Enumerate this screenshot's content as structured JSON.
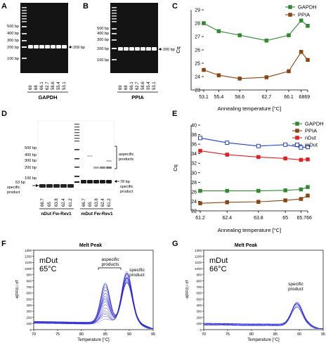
{
  "panel_letters": {
    "A": "A",
    "B": "B",
    "C": "C",
    "D": "D",
    "E": "E",
    "F": "F",
    "G": "G"
  },
  "gel_A": {
    "ladder": [
      "500 bp",
      "400 bp",
      "300 bp",
      "200 bp",
      "100 bp"
    ],
    "lanes": [
      "69",
      "68",
      "66.1",
      "62.7",
      "58.6",
      "55.4",
      "53.1"
    ],
    "band_label": "209 bp",
    "gene": "GAPDH"
  },
  "gel_B": {
    "ladder": [
      "500 bp",
      "400 bp",
      "300 bp",
      "200 bp",
      "100 bp"
    ],
    "lanes": [
      "69",
      "68",
      "66.1",
      "62.7",
      "58.6",
      "55.4",
      "53.1"
    ],
    "band_label": "200 bp",
    "gene": "PPIA"
  },
  "gel_D": {
    "ladder": [
      "500 bp",
      "400 bp",
      "300 bp",
      "200 bp",
      "100 bp"
    ],
    "lanes_left": [
      "66.7",
      "65",
      "63.8",
      "62.4",
      "61.2"
    ],
    "lanes_right": [
      "66.7",
      "65",
      "63.8",
      "62.4",
      "61.2"
    ],
    "left_label_bp": "53 bp",
    "left_label_1": "specific",
    "left_label_2": "product",
    "right_label_bp": "78 bp",
    "right_label_1": "specific",
    "right_label_2": "product",
    "aspecific_1": "aspecific",
    "aspecific_2": "products",
    "group_left": "nDut Fw-Rev1",
    "group_right": "mDut Fw-Rev1"
  },
  "chart_data": [
    {
      "id": "C",
      "type": "line",
      "xlabel": "Annealing temperature [°C]",
      "ylabel": "Cq",
      "x_ticks": [
        "53.1",
        "55.4",
        "58.6",
        "62.7",
        "66.1",
        "68",
        "69"
      ],
      "x_tick_display": [
        "53.1",
        "55.4",
        "58.6",
        "62.7",
        "66.1",
        "68",
        "69"
      ],
      "xlim": [
        53.1,
        69
      ],
      "ylim": [
        23,
        29
      ],
      "y_ticks": [
        23,
        24,
        25,
        26,
        27,
        28,
        29
      ],
      "grid": false,
      "legend": "top-right",
      "series": [
        {
          "name": "GAPDH",
          "color": "#2f8a2f",
          "marker": "square-filled",
          "x": [
            53.1,
            55.4,
            58.6,
            62.7,
            66.1,
            68,
            69
          ],
          "y": [
            28.0,
            27.4,
            27.1,
            26.7,
            27.1,
            28.2,
            27.8
          ]
        },
        {
          "name": "PPIA",
          "color": "#8b4513",
          "marker": "square-filled",
          "x": [
            53.1,
            55.4,
            58.6,
            62.7,
            66.1,
            68,
            69
          ],
          "y": [
            24.5,
            24.1,
            23.85,
            23.95,
            24.4,
            25.85,
            25.25
          ]
        }
      ]
    },
    {
      "id": "E",
      "type": "line",
      "xlabel": "Annealing temperature [°C]",
      "ylabel": "Cq",
      "x_ticks": [
        "61.2",
        "62.4",
        "63.8",
        "65",
        "65.7",
        "66"
      ],
      "x_tick_display": [
        "61.2",
        "62.4",
        "63.8",
        "65",
        "65.7",
        "66"
      ],
      "xlim": [
        61.2,
        66
      ],
      "ylim": [
        22,
        40
      ],
      "y_ticks": [
        22,
        24,
        26,
        28,
        30,
        32,
        34,
        36,
        38,
        40
      ],
      "grid": false,
      "legend": "top-right",
      "series": [
        {
          "name": "GAPDH",
          "color": "#2f8a2f",
          "marker": "square-filled",
          "x": [
            61.2,
            62.4,
            63.8,
            65,
            65.7,
            66
          ],
          "y": [
            26.2,
            26.2,
            26.2,
            26.3,
            26.5,
            27.0
          ]
        },
        {
          "name": "PPIA",
          "color": "#8b4513",
          "marker": "square-filled",
          "x": [
            61.2,
            62.4,
            63.8,
            65,
            65.7,
            66
          ],
          "y": [
            23.6,
            23.8,
            23.9,
            24.2,
            24.5,
            25.2
          ]
        },
        {
          "name": "nDut",
          "color": "#e02020",
          "marker": "square-filled",
          "x": [
            61.2,
            62.4,
            63.8,
            65,
            65.7,
            66
          ],
          "y": [
            34.6,
            33.8,
            33.3,
            33.0,
            32.7,
            32.8
          ]
        },
        {
          "name": "mDut",
          "color": "#1f3fd6",
          "marker": "square-open",
          "x": [
            61.2,
            62.4,
            63.8,
            65,
            65.7,
            66
          ],
          "y": [
            37.3,
            36.3,
            35.6,
            35.9,
            35.3,
            35.4
          ]
        }
      ]
    },
    {
      "id": "F",
      "type": "line",
      "title": "Melt Peak",
      "xlabel": "Temperature [°C]",
      "ylabel": "-d(RFU) / dT",
      "xlim": [
        70,
        95
      ],
      "x_ticks": [
        70,
        75,
        80,
        85,
        90,
        95
      ],
      "ylim": [
        0,
        1300
      ],
      "y_ticks": [
        0,
        100,
        200,
        300,
        400,
        500,
        600,
        700,
        800,
        900,
        1000,
        1100,
        1200,
        1300
      ],
      "annotation_condition": "mDut",
      "annotation_temp": "65°C",
      "annotation_aspecific_1": "aspecific",
      "annotation_aspecific_2": "products",
      "annotation_specific_1": "specific",
      "annotation_specific_2": "product",
      "peaks": [
        {
          "center": 85.0,
          "width": 1.0,
          "height_range": [
            60,
            660
          ]
        },
        {
          "center": 89.5,
          "width": 1.1,
          "height_range": [
            560,
            860
          ]
        }
      ],
      "baseline": 120,
      "n_curves": 16,
      "color": "#2a2ad8"
    },
    {
      "id": "G",
      "type": "line",
      "title": "Melt Peak",
      "xlabel": "Temperature [°C]",
      "ylabel": "-d(RFU) / dT",
      "xlim": [
        70,
        95
      ],
      "x_ticks": [
        70,
        75,
        80,
        85,
        90,
        95
      ],
      "ylim": [
        0,
        1300
      ],
      "y_ticks": [
        0,
        100,
        200,
        300,
        400,
        500,
        600,
        700,
        800,
        900,
        1000,
        1100,
        1200,
        1300
      ],
      "annotation_condition": "mDut",
      "annotation_temp": "66°C",
      "annotation_specific_1": "specific",
      "annotation_specific_2": "product",
      "peaks": [
        {
          "center": 89.5,
          "width": 1.15,
          "height_range": [
            300,
            380
          ]
        }
      ],
      "baseline": 90,
      "n_curves": 10,
      "color": "#2a2ad8"
    }
  ]
}
